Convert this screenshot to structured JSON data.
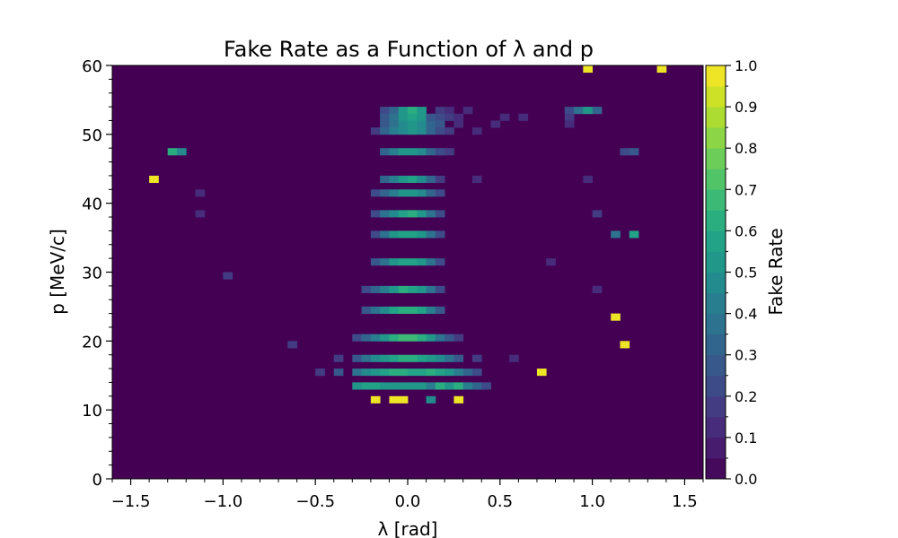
{
  "chart_data": {
    "type": "heatmap",
    "title": "Fake Rate as a Function of λ and p",
    "xlabel": "λ [rad]",
    "ylabel": "p [MeV/c]",
    "colorbar_label": "Fake Rate",
    "xlim": [
      -1.6,
      1.6
    ],
    "ylim": [
      0,
      60
    ],
    "x_ticks": [
      -1.5,
      -1.0,
      -0.5,
      0.0,
      0.5,
      1.0,
      1.5
    ],
    "x_tick_labels": [
      "−1.5",
      "−1.0",
      "−0.5",
      "0.0",
      "0.5",
      "1.0",
      "1.5"
    ],
    "y_ticks": [
      0,
      10,
      20,
      30,
      40,
      50,
      60
    ],
    "y_tick_labels": [
      "0",
      "10",
      "20",
      "30",
      "40",
      "50",
      "60"
    ],
    "colorbar_ticks": [
      0.0,
      0.1,
      0.2,
      0.3,
      0.4,
      0.5,
      0.6,
      0.7,
      0.8,
      0.9,
      1.0
    ],
    "colorbar_tick_labels": [
      "0.0",
      "0.1",
      "0.2",
      "0.3",
      "0.4",
      "0.5",
      "0.6",
      "0.7",
      "0.8",
      "0.9",
      "1.0"
    ],
    "colorbar_range": [
      0,
      1
    ],
    "colormap": "viridis",
    "colorbar_levels": 20,
    "bins": {
      "x_edges": [
        -1.6,
        1.6
      ],
      "x_count": 64,
      "y_edges": [
        0,
        60
      ],
      "y_count": 60
    },
    "cells": [
      [
        0.975,
        59,
        1.0
      ],
      [
        1.375,
        59,
        1.0
      ],
      [
        -0.125,
        53,
        0.2
      ],
      [
        -0.075,
        53,
        0.3
      ],
      [
        -0.025,
        53,
        0.5
      ],
      [
        0.025,
        53,
        0.6
      ],
      [
        0.075,
        53,
        0.5
      ],
      [
        0.175,
        53,
        0.15
      ],
      [
        0.225,
        53,
        0.1
      ],
      [
        0.325,
        53,
        0.1
      ],
      [
        0.875,
        53,
        0.2
      ],
      [
        0.925,
        53,
        0.35
      ],
      [
        0.975,
        53,
        0.5
      ],
      [
        1.025,
        53,
        0.3
      ],
      [
        -0.125,
        52,
        0.25
      ],
      [
        -0.075,
        52,
        0.35
      ],
      [
        -0.025,
        52,
        0.5
      ],
      [
        0.025,
        52,
        0.55
      ],
      [
        0.075,
        52,
        0.5
      ],
      [
        0.125,
        52,
        0.25
      ],
      [
        0.175,
        52,
        0.2
      ],
      [
        0.225,
        52,
        0.15
      ],
      [
        0.275,
        52,
        0.1
      ],
      [
        0.525,
        52,
        0.1
      ],
      [
        0.625,
        52,
        0.1
      ],
      [
        0.875,
        52,
        0.15
      ],
      [
        -0.125,
        51,
        0.25
      ],
      [
        -0.075,
        51,
        0.35
      ],
      [
        -0.025,
        51,
        0.45
      ],
      [
        0.025,
        51,
        0.5
      ],
      [
        0.075,
        51,
        0.45
      ],
      [
        0.125,
        51,
        0.3
      ],
      [
        0.175,
        51,
        0.25
      ],
      [
        0.275,
        51,
        0.1
      ],
      [
        0.475,
        51,
        0.1
      ],
      [
        0.875,
        51,
        0.1
      ],
      [
        -0.175,
        50,
        0.15
      ],
      [
        -0.125,
        50,
        0.3
      ],
      [
        -0.075,
        50,
        0.4
      ],
      [
        -0.025,
        50,
        0.45
      ],
      [
        0.025,
        50,
        0.5
      ],
      [
        0.075,
        50,
        0.45
      ],
      [
        0.125,
        50,
        0.3
      ],
      [
        0.175,
        50,
        0.2
      ],
      [
        0.225,
        50,
        0.15
      ],
      [
        0.375,
        50,
        0.1
      ],
      [
        -1.275,
        47,
        0.6
      ],
      [
        -1.225,
        47,
        0.45
      ],
      [
        -0.125,
        47,
        0.3
      ],
      [
        -0.075,
        47,
        0.4
      ],
      [
        -0.025,
        47,
        0.5
      ],
      [
        0.025,
        47,
        0.5
      ],
      [
        0.075,
        47,
        0.45
      ],
      [
        0.125,
        47,
        0.3
      ],
      [
        0.175,
        47,
        0.2
      ],
      [
        0.225,
        47,
        0.15
      ],
      [
        1.175,
        47,
        0.2
      ],
      [
        1.225,
        47,
        0.25
      ],
      [
        -1.375,
        43,
        1.0
      ],
      [
        -0.125,
        43,
        0.3
      ],
      [
        -0.075,
        43,
        0.4
      ],
      [
        -0.025,
        43,
        0.5
      ],
      [
        0.025,
        43,
        0.55
      ],
      [
        0.075,
        43,
        0.45
      ],
      [
        0.125,
        43,
        0.3
      ],
      [
        0.175,
        43,
        0.15
      ],
      [
        0.375,
        43,
        0.1
      ],
      [
        0.975,
        43,
        0.1
      ],
      [
        -1.125,
        41,
        0.1
      ],
      [
        -0.175,
        41,
        0.2
      ],
      [
        -0.125,
        41,
        0.3
      ],
      [
        -0.075,
        41,
        0.4
      ],
      [
        -0.025,
        41,
        0.5
      ],
      [
        0.025,
        41,
        0.5
      ],
      [
        0.075,
        41,
        0.45
      ],
      [
        0.125,
        41,
        0.3
      ],
      [
        0.175,
        41,
        0.2
      ],
      [
        -1.125,
        38,
        0.1
      ],
      [
        -0.175,
        38,
        0.2
      ],
      [
        -0.125,
        38,
        0.35
      ],
      [
        -0.075,
        38,
        0.45
      ],
      [
        -0.025,
        38,
        0.55
      ],
      [
        0.025,
        38,
        0.6
      ],
      [
        0.075,
        38,
        0.5
      ],
      [
        0.125,
        38,
        0.35
      ],
      [
        0.175,
        38,
        0.2
      ],
      [
        1.025,
        38,
        0.15
      ],
      [
        -0.175,
        35,
        0.2
      ],
      [
        -0.125,
        35,
        0.35
      ],
      [
        -0.075,
        35,
        0.5
      ],
      [
        -0.025,
        35,
        0.55
      ],
      [
        0.025,
        35,
        0.55
      ],
      [
        0.075,
        35,
        0.5
      ],
      [
        0.125,
        35,
        0.35
      ],
      [
        0.175,
        35,
        0.2
      ],
      [
        1.125,
        35,
        0.35
      ],
      [
        1.225,
        35,
        0.55
      ],
      [
        -0.175,
        31,
        0.25
      ],
      [
        -0.125,
        31,
        0.35
      ],
      [
        -0.075,
        31,
        0.5
      ],
      [
        -0.025,
        31,
        0.55
      ],
      [
        0.025,
        31,
        0.55
      ],
      [
        0.075,
        31,
        0.5
      ],
      [
        0.125,
        31,
        0.35
      ],
      [
        0.175,
        31,
        0.2
      ],
      [
        -0.975,
        29,
        0.15
      ],
      [
        0.775,
        31,
        0.1
      ],
      [
        -0.225,
        27,
        0.2
      ],
      [
        -0.175,
        27,
        0.3
      ],
      [
        -0.125,
        27,
        0.4
      ],
      [
        -0.075,
        27,
        0.5
      ],
      [
        -0.025,
        27,
        0.6
      ],
      [
        0.025,
        27,
        0.55
      ],
      [
        0.075,
        27,
        0.5
      ],
      [
        0.125,
        27,
        0.35
      ],
      [
        0.175,
        27,
        0.2
      ],
      [
        1.025,
        27,
        0.1
      ],
      [
        -0.225,
        24,
        0.25
      ],
      [
        -0.175,
        24,
        0.35
      ],
      [
        -0.125,
        24,
        0.45
      ],
      [
        -0.075,
        24,
        0.55
      ],
      [
        -0.025,
        24,
        0.6
      ],
      [
        0.025,
        24,
        0.6
      ],
      [
        0.075,
        24,
        0.55
      ],
      [
        0.125,
        24,
        0.4
      ],
      [
        0.175,
        24,
        0.25
      ],
      [
        1.125,
        23,
        1.0
      ],
      [
        -0.275,
        20,
        0.2
      ],
      [
        -0.225,
        20,
        0.3
      ],
      [
        -0.175,
        20,
        0.4
      ],
      [
        -0.125,
        20,
        0.5
      ],
      [
        -0.075,
        20,
        0.6
      ],
      [
        -0.025,
        20,
        0.65
      ],
      [
        0.025,
        20,
        0.65
      ],
      [
        0.075,
        20,
        0.6
      ],
      [
        0.125,
        20,
        0.5
      ],
      [
        0.175,
        20,
        0.35
      ],
      [
        0.225,
        20,
        0.25
      ],
      [
        0.275,
        20,
        0.15
      ],
      [
        -0.625,
        19,
        0.15
      ],
      [
        1.175,
        19,
        1.0
      ],
      [
        -0.375,
        17,
        0.15
      ],
      [
        -0.275,
        17,
        0.25
      ],
      [
        -0.225,
        17,
        0.35
      ],
      [
        -0.175,
        17,
        0.45
      ],
      [
        -0.125,
        17,
        0.5
      ],
      [
        -0.075,
        17,
        0.55
      ],
      [
        -0.025,
        17,
        0.6
      ],
      [
        0.025,
        17,
        0.6
      ],
      [
        0.075,
        17,
        0.55
      ],
      [
        0.125,
        17,
        0.5
      ],
      [
        0.175,
        17,
        0.45
      ],
      [
        0.225,
        17,
        0.35
      ],
      [
        0.275,
        17,
        0.25
      ],
      [
        0.375,
        17,
        0.15
      ],
      [
        0.575,
        17,
        0.1
      ],
      [
        -0.475,
        15,
        0.15
      ],
      [
        -0.375,
        15,
        0.25
      ],
      [
        -0.275,
        15,
        0.35
      ],
      [
        -0.225,
        15,
        0.45
      ],
      [
        -0.175,
        15,
        0.5
      ],
      [
        -0.125,
        15,
        0.55
      ],
      [
        -0.075,
        15,
        0.6
      ],
      [
        -0.025,
        15,
        0.6
      ],
      [
        0.025,
        15,
        0.55
      ],
      [
        0.075,
        15,
        0.55
      ],
      [
        0.125,
        15,
        0.6
      ],
      [
        0.175,
        15,
        0.55
      ],
      [
        0.225,
        15,
        0.5
      ],
      [
        0.275,
        15,
        0.4
      ],
      [
        0.325,
        15,
        0.3
      ],
      [
        0.375,
        15,
        0.2
      ],
      [
        0.725,
        15,
        1.0
      ],
      [
        -0.275,
        13,
        0.5
      ],
      [
        -0.225,
        13,
        0.55
      ],
      [
        -0.175,
        13,
        0.55
      ],
      [
        -0.125,
        13,
        0.5
      ],
      [
        -0.075,
        13,
        0.5
      ],
      [
        -0.025,
        13,
        0.5
      ],
      [
        0.025,
        13,
        0.5
      ],
      [
        0.075,
        13,
        0.5
      ],
      [
        0.125,
        13,
        0.4
      ],
      [
        0.175,
        13,
        0.6
      ],
      [
        0.225,
        13,
        0.5
      ],
      [
        0.275,
        13,
        0.6
      ],
      [
        0.325,
        13,
        0.4
      ],
      [
        0.375,
        13,
        0.3
      ],
      [
        0.425,
        13,
        0.2
      ],
      [
        -0.175,
        11,
        1.0
      ],
      [
        -0.075,
        11,
        1.0
      ],
      [
        -0.025,
        11,
        1.0
      ],
      [
        0.125,
        11,
        0.45
      ],
      [
        0.275,
        11,
        1.0
      ]
    ]
  }
}
